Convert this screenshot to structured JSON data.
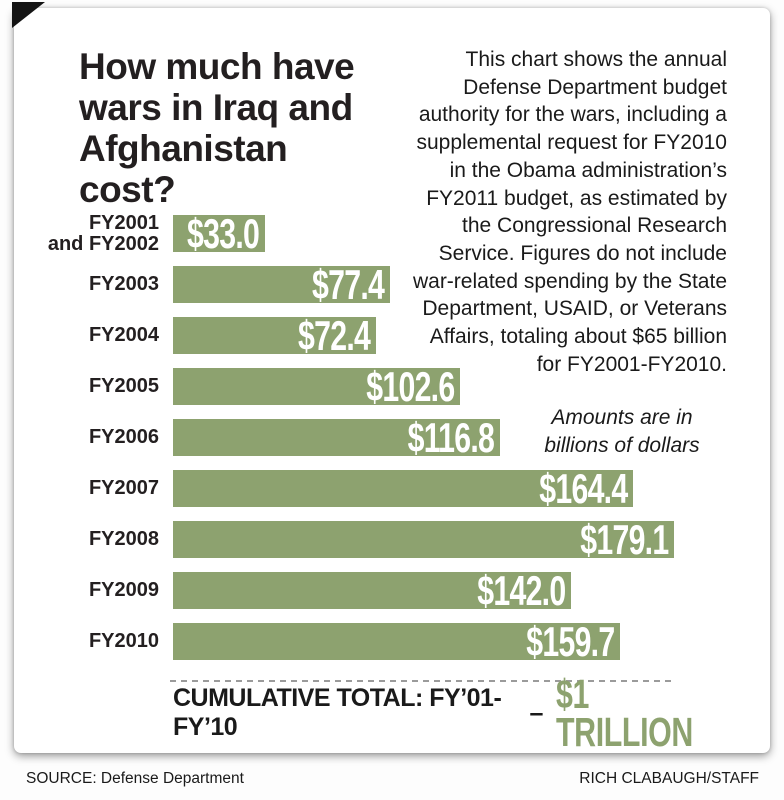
{
  "card": {
    "title": "How much have\nwars in Iraq and\nAfghanistan cost?",
    "description": "This chart shows the annual\nDefense Department budget\nauthority for the wars, including a\nsupplemental request for FY2010\nin the Obama administration’s\nFY2011 budget, as estimated by\nthe Congressional Research\nService. Figures do not include\nwar-related spending by the State\nDepartment, USAID, or Veterans\nAffairs, totaling about $65 billion\nfor FY2001-FY2010.",
    "units_note": "Amounts are in\nbillions of dollars"
  },
  "chart_data": {
    "type": "bar",
    "orientation": "horizontal",
    "title": "How much have wars in Iraq and Afghanistan cost?",
    "units": "billions of dollars",
    "categories": [
      "FY2001 and FY2002",
      "FY2003",
      "FY2004",
      "FY2005",
      "FY2006",
      "FY2007",
      "FY2008",
      "FY2009",
      "FY2010"
    ],
    "categories_display": [
      "FY2001\nand FY2002",
      "FY2003",
      "FY2004",
      "FY2005",
      "FY2006",
      "FY2007",
      "FY2008",
      "FY2009",
      "FY2010"
    ],
    "values": [
      33.0,
      77.4,
      72.4,
      102.6,
      116.8,
      164.4,
      179.1,
      142.0,
      159.7
    ],
    "value_labels": [
      "$33.0",
      "$77.4",
      "$72.4",
      "$102.6",
      "$116.8",
      "$164.4",
      "$179.1",
      "$142.0",
      "$159.7"
    ],
    "xlim": [
      0,
      190
    ],
    "grid": false,
    "legend": false,
    "bar_color": "#8da26f",
    "value_text_color": "#ffffff",
    "cumulative_total": {
      "label": "CUMULATIVE TOTAL: FY’01-FY’10",
      "dash": "–",
      "value": "$1 TRILLION"
    }
  },
  "footer": {
    "source": "SOURCE: Defense Department",
    "credit": "RICH CLABAUGH/STAFF"
  }
}
